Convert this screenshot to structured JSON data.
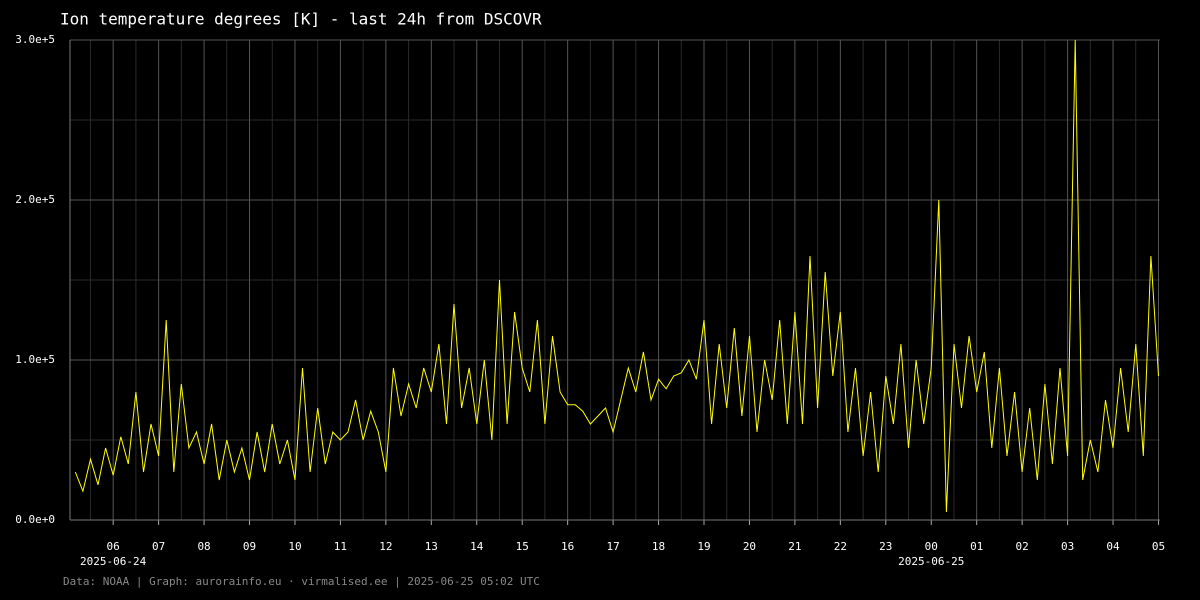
{
  "chart_data": {
    "type": "line",
    "title": "Ion temperature degrees [K] - last 24h from DSCOVR",
    "footer": "Data: NOAA | Graph: aurorainfo.eu · virmalised.ee | 2025-06-25 05:02 UTC",
    "xlim": [
      "2025-06-24T05:03",
      "2025-06-25T05:02"
    ],
    "xticks": [
      {
        "value": "2025-06-24T06:00",
        "label": "06"
      },
      {
        "value": "2025-06-24T07:00",
        "label": "07"
      },
      {
        "value": "2025-06-24T08:00",
        "label": "08"
      },
      {
        "value": "2025-06-24T09:00",
        "label": "09"
      },
      {
        "value": "2025-06-24T10:00",
        "label": "10"
      },
      {
        "value": "2025-06-24T11:00",
        "label": "11"
      },
      {
        "value": "2025-06-24T12:00",
        "label": "12"
      },
      {
        "value": "2025-06-24T13:00",
        "label": "13"
      },
      {
        "value": "2025-06-24T14:00",
        "label": "14"
      },
      {
        "value": "2025-06-24T15:00",
        "label": "15"
      },
      {
        "value": "2025-06-24T16:00",
        "label": "16"
      },
      {
        "value": "2025-06-24T17:00",
        "label": "17"
      },
      {
        "value": "2025-06-24T18:00",
        "label": "18"
      },
      {
        "value": "2025-06-24T19:00",
        "label": "19"
      },
      {
        "value": "2025-06-24T20:00",
        "label": "20"
      },
      {
        "value": "2025-06-24T21:00",
        "label": "21"
      },
      {
        "value": "2025-06-24T22:00",
        "label": "22"
      },
      {
        "value": "2025-06-24T23:00",
        "label": "23"
      },
      {
        "value": "2025-06-25T00:00",
        "label": "00"
      },
      {
        "value": "2025-06-25T01:00",
        "label": "01"
      },
      {
        "value": "2025-06-25T02:00",
        "label": "02"
      },
      {
        "value": "2025-06-25T03:00",
        "label": "03"
      },
      {
        "value": "2025-06-25T04:00",
        "label": "04"
      },
      {
        "value": "2025-06-25T05:00",
        "label": "05"
      }
    ],
    "x_date_labels": [
      {
        "value": "2025-06-24T06:00",
        "label": "2025-06-24"
      },
      {
        "value": "2025-06-25T00:00",
        "label": "2025-06-25"
      }
    ],
    "ylim": [
      0,
      300000
    ],
    "yticks": [
      {
        "value": 0,
        "label": "0.0e+0"
      },
      {
        "value": 100000,
        "label": "1.0e+5"
      },
      {
        "value": 200000,
        "label": "2.0e+5"
      },
      {
        "value": 300000,
        "label": "3.0e+5"
      }
    ],
    "yminor": [
      50000,
      150000,
      250000
    ],
    "grid": true,
    "x": [
      "2025-06-24T05:10",
      "2025-06-24T05:20",
      "2025-06-24T05:30",
      "2025-06-24T05:40",
      "2025-06-24T05:50",
      "2025-06-24T06:00",
      "2025-06-24T06:10",
      "2025-06-24T06:20",
      "2025-06-24T06:30",
      "2025-06-24T06:40",
      "2025-06-24T06:50",
      "2025-06-24T07:00",
      "2025-06-24T07:10",
      "2025-06-24T07:20",
      "2025-06-24T07:30",
      "2025-06-24T07:40",
      "2025-06-24T07:50",
      "2025-06-24T08:00",
      "2025-06-24T08:10",
      "2025-06-24T08:20",
      "2025-06-24T08:30",
      "2025-06-24T08:40",
      "2025-06-24T08:50",
      "2025-06-24T09:00",
      "2025-06-24T09:10",
      "2025-06-24T09:20",
      "2025-06-24T09:30",
      "2025-06-24T09:40",
      "2025-06-24T09:50",
      "2025-06-24T10:00",
      "2025-06-24T10:10",
      "2025-06-24T10:20",
      "2025-06-24T10:30",
      "2025-06-24T10:40",
      "2025-06-24T10:50",
      "2025-06-24T11:00",
      "2025-06-24T11:10",
      "2025-06-24T11:20",
      "2025-06-24T11:30",
      "2025-06-24T11:40",
      "2025-06-24T11:50",
      "2025-06-24T12:00",
      "2025-06-24T12:10",
      "2025-06-24T12:20",
      "2025-06-24T12:30",
      "2025-06-24T12:40",
      "2025-06-24T12:50",
      "2025-06-24T13:00",
      "2025-06-24T13:10",
      "2025-06-24T13:20",
      "2025-06-24T13:30",
      "2025-06-24T13:40",
      "2025-06-24T13:50",
      "2025-06-24T14:00",
      "2025-06-24T14:10",
      "2025-06-24T14:20",
      "2025-06-24T14:30",
      "2025-06-24T14:40",
      "2025-06-24T14:50",
      "2025-06-24T15:00",
      "2025-06-24T15:10",
      "2025-06-24T15:20",
      "2025-06-24T15:30",
      "2025-06-24T15:40",
      "2025-06-24T15:50",
      "2025-06-24T16:00",
      "2025-06-24T16:10",
      "2025-06-24T16:20",
      "2025-06-24T16:30",
      "2025-06-24T16:40",
      "2025-06-24T16:50",
      "2025-06-24T17:00",
      "2025-06-24T17:10",
      "2025-06-24T17:20",
      "2025-06-24T17:30",
      "2025-06-24T17:40",
      "2025-06-24T17:50",
      "2025-06-24T18:00",
      "2025-06-24T18:10",
      "2025-06-24T18:20",
      "2025-06-24T18:30",
      "2025-06-24T18:40",
      "2025-06-24T18:50",
      "2025-06-24T19:00",
      "2025-06-24T19:10",
      "2025-06-24T19:20",
      "2025-06-24T19:30",
      "2025-06-24T19:40",
      "2025-06-24T19:50",
      "2025-06-24T20:00",
      "2025-06-24T20:10",
      "2025-06-24T20:20",
      "2025-06-24T20:30",
      "2025-06-24T20:40",
      "2025-06-24T20:50",
      "2025-06-24T21:00",
      "2025-06-24T21:10",
      "2025-06-24T21:20",
      "2025-06-24T21:30",
      "2025-06-24T21:40",
      "2025-06-24T21:50",
      "2025-06-24T22:00",
      "2025-06-24T22:10",
      "2025-06-24T22:20",
      "2025-06-24T22:30",
      "2025-06-24T22:40",
      "2025-06-24T22:50",
      "2025-06-24T23:00",
      "2025-06-24T23:10",
      "2025-06-24T23:20",
      "2025-06-24T23:30",
      "2025-06-24T23:40",
      "2025-06-24T23:50",
      "2025-06-25T00:00",
      "2025-06-25T00:10",
      "2025-06-25T00:20",
      "2025-06-25T00:30",
      "2025-06-25T00:40",
      "2025-06-25T00:50",
      "2025-06-25T01:00",
      "2025-06-25T01:10",
      "2025-06-25T01:20",
      "2025-06-25T01:30",
      "2025-06-25T01:40",
      "2025-06-25T01:50",
      "2025-06-25T02:00",
      "2025-06-25T02:10",
      "2025-06-25T02:20",
      "2025-06-25T02:30",
      "2025-06-25T02:40",
      "2025-06-25T02:50",
      "2025-06-25T03:00",
      "2025-06-25T03:10",
      "2025-06-25T03:20",
      "2025-06-25T03:30",
      "2025-06-25T03:40",
      "2025-06-25T03:50",
      "2025-06-25T04:00",
      "2025-06-25T04:10",
      "2025-06-25T04:20",
      "2025-06-25T04:30",
      "2025-06-25T04:40",
      "2025-06-25T04:50",
      "2025-06-25T05:00"
    ],
    "series": [
      {
        "color": "#ffff00",
        "values": [
          30000,
          18000,
          38000,
          22000,
          45000,
          28000,
          52000,
          35000,
          80000,
          30000,
          60000,
          40000,
          125000,
          30000,
          85000,
          45000,
          55000,
          35000,
          60000,
          25000,
          50000,
          30000,
          45000,
          25000,
          55000,
          30000,
          60000,
          35000,
          50000,
          25000,
          95000,
          30000,
          70000,
          35000,
          55000,
          50000,
          55000,
          75000,
          50000,
          68000,
          55000,
          30000,
          95000,
          65000,
          85000,
          70000,
          95000,
          80000,
          110000,
          60000,
          135000,
          70000,
          95000,
          60000,
          100000,
          50000,
          150000,
          60000,
          130000,
          95000,
          80000,
          125000,
          60000,
          115000,
          80000,
          72000,
          72000,
          68000,
          60000,
          65000,
          70000,
          55000,
          75000,
          95000,
          80000,
          105000,
          75000,
          88000,
          82000,
          90000,
          92000,
          100000,
          88000,
          125000,
          60000,
          110000,
          70000,
          120000,
          65000,
          115000,
          55000,
          100000,
          75000,
          125000,
          60000,
          130000,
          60000,
          165000,
          70000,
          155000,
          90000,
          130000,
          55000,
          95000,
          40000,
          80000,
          30000,
          90000,
          60000,
          110000,
          45000,
          100000,
          60000,
          95000,
          200000,
          5000,
          110000,
          70000,
          115000,
          80000,
          105000,
          45000,
          95000,
          40000,
          80000,
          30000,
          70000,
          25000,
          85000,
          35000,
          95000,
          40000,
          300000,
          25000,
          50000,
          30000,
          75000,
          45000,
          95000,
          55000,
          110000,
          40000,
          165000,
          90000
        ]
      }
    ]
  }
}
